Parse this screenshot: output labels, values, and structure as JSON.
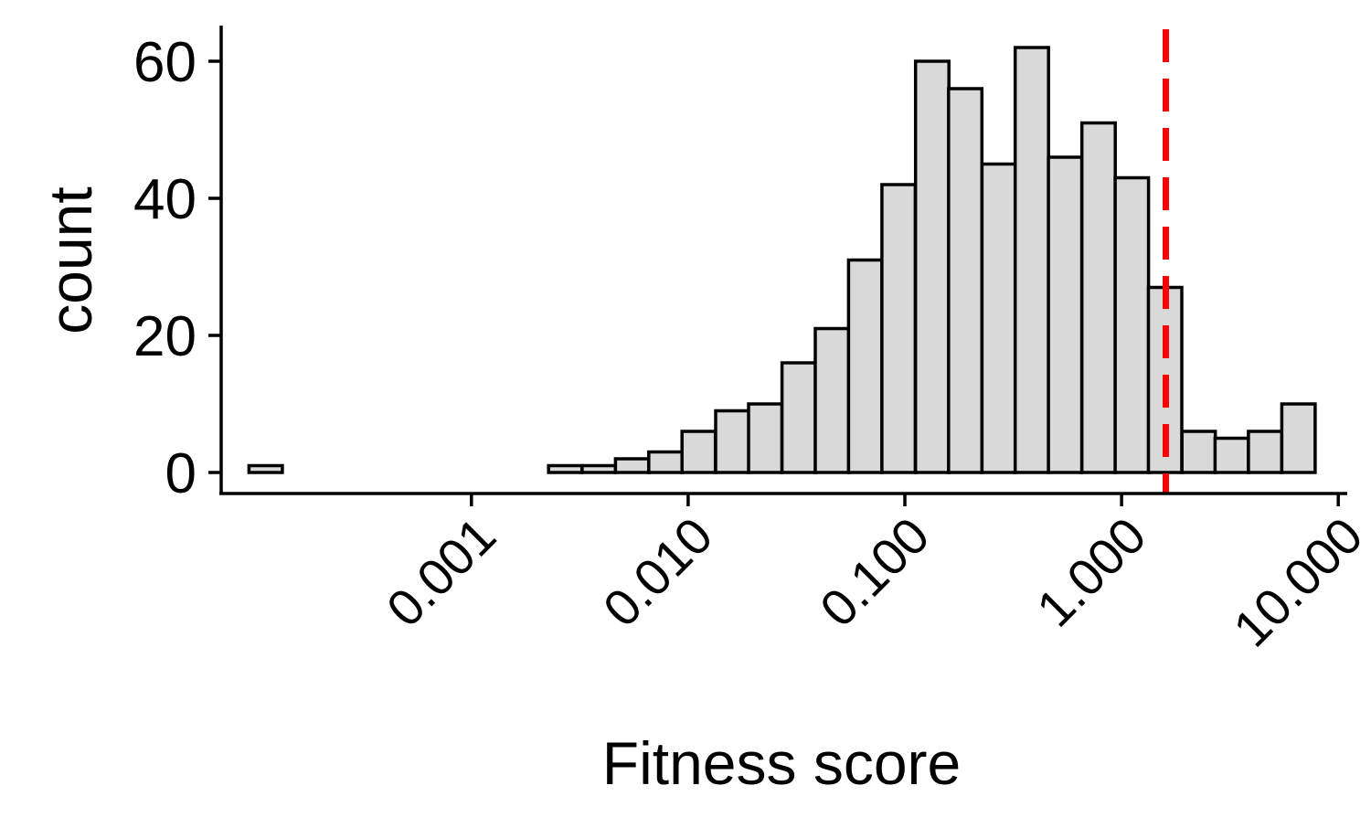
{
  "chart_data": {
    "type": "bar",
    "title": "",
    "xlabel": "Fitness score",
    "ylabel": "count",
    "x_scale": "log10",
    "xlim": [
      7e-05,
      11
    ],
    "ylim": [
      0,
      65
    ],
    "x_ticks": [
      0.001,
      0.01,
      0.1,
      1,
      10
    ],
    "x_tick_labels": [
      "0.001",
      "0.010",
      "0.100",
      "1.000",
      "10.000"
    ],
    "y_ticks": [
      0,
      20,
      40,
      60
    ],
    "y_tick_labels": [
      "0",
      "20",
      "40",
      "60"
    ],
    "grid": false,
    "legend": "none",
    "bin_width_log10": 0.154,
    "bins": [
      {
        "left": 9.4e-05,
        "count": 1
      },
      {
        "left": 0.000134,
        "count": 0
      },
      {
        "left": 0.000191,
        "count": 0
      },
      {
        "left": 0.000272,
        "count": 0
      },
      {
        "left": 0.000388,
        "count": 0
      },
      {
        "left": 0.000553,
        "count": 0
      },
      {
        "left": 0.000787,
        "count": 0
      },
      {
        "left": 0.00112,
        "count": 0
      },
      {
        "left": 0.0016,
        "count": 0
      },
      {
        "left": 0.00227,
        "count": 1
      },
      {
        "left": 0.00324,
        "count": 1
      },
      {
        "left": 0.00462,
        "count": 2
      },
      {
        "left": 0.00658,
        "count": 3
      },
      {
        "left": 0.00937,
        "count": 6
      },
      {
        "left": 0.0134,
        "count": 9
      },
      {
        "left": 0.019,
        "count": 10
      },
      {
        "left": 0.0271,
        "count": 16
      },
      {
        "left": 0.0386,
        "count": 21
      },
      {
        "left": 0.055,
        "count": 31
      },
      {
        "left": 0.0784,
        "count": 42
      },
      {
        "left": 0.112,
        "count": 60
      },
      {
        "left": 0.159,
        "count": 56
      },
      {
        "left": 0.227,
        "count": 45
      },
      {
        "left": 0.323,
        "count": 62
      },
      {
        "left": 0.46,
        "count": 46
      },
      {
        "left": 0.656,
        "count": 51
      },
      {
        "left": 0.934,
        "count": 43
      },
      {
        "left": 1.33,
        "count": 27
      },
      {
        "left": 1.9,
        "count": 6
      },
      {
        "left": 2.7,
        "count": 5
      },
      {
        "left": 3.85,
        "count": 6
      },
      {
        "left": 5.49,
        "count": 10
      }
    ],
    "threshold_line": {
      "x": 1.6,
      "color": "#ff0000",
      "style": "dashed"
    },
    "bar_fill": "#d9d9d9",
    "bar_stroke": "#000000"
  }
}
